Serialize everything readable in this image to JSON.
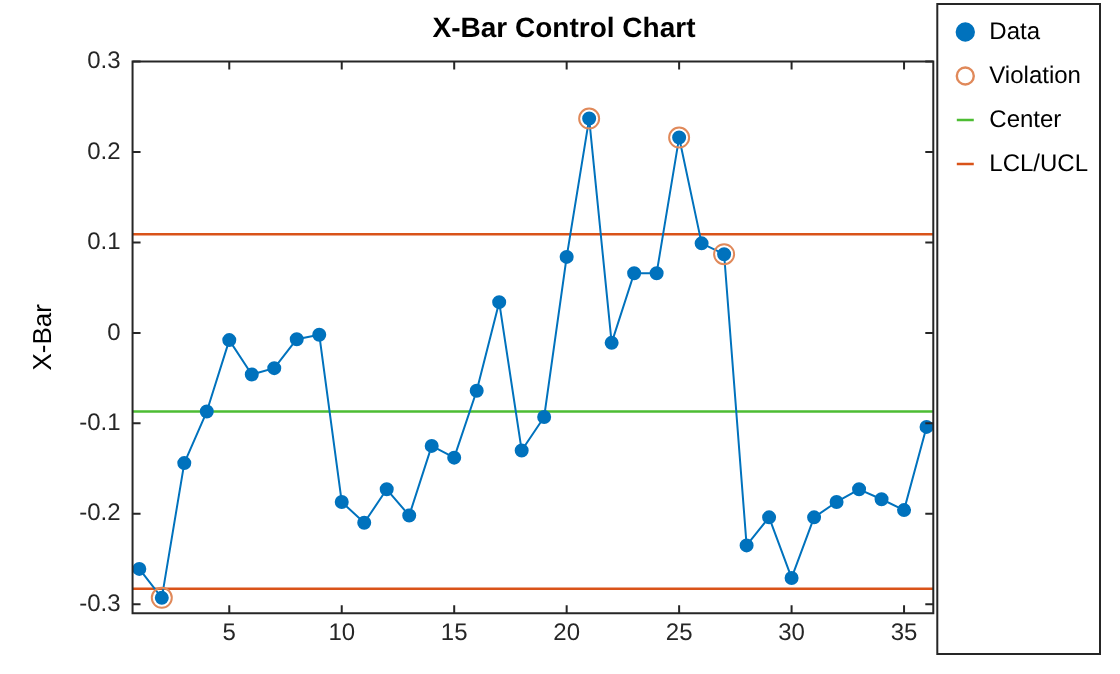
{
  "chart_data": {
    "type": "line",
    "title": "X-Bar Control Chart",
    "ylabel": "X-Bar",
    "x": [
      1,
      2,
      3,
      4,
      5,
      6,
      7,
      8,
      9,
      10,
      11,
      12,
      13,
      14,
      15,
      16,
      17,
      18,
      19,
      20,
      21,
      22,
      23,
      24,
      25,
      26,
      27,
      28,
      29,
      30,
      31,
      32,
      33,
      34,
      35,
      36
    ],
    "series": [
      {
        "name": "Data",
        "color": "#0072bd",
        "marker": "circle",
        "values": [
          -0.261,
          -0.293,
          -0.144,
          -0.087,
          -0.008,
          -0.046,
          -0.039,
          -0.007,
          -0.002,
          -0.187,
          -0.21,
          -0.173,
          -0.202,
          -0.125,
          -0.138,
          -0.064,
          0.034,
          -0.13,
          -0.093,
          0.084,
          0.237,
          -0.011,
          0.066,
          0.066,
          0.216,
          0.099,
          0.087,
          -0.235,
          -0.204,
          -0.271,
          -0.204,
          -0.187,
          -0.173,
          -0.184,
          -0.196,
          -0.104
        ]
      },
      {
        "name": "Violation",
        "type": "scatter",
        "color": "#e0895a",
        "marker": "circle",
        "x": [
          2,
          21,
          25,
          27
        ],
        "values": [
          -0.293,
          0.237,
          0.216,
          0.087
        ]
      }
    ],
    "ref_lines": [
      {
        "axis": "y",
        "value": -0.087,
        "label": "Center",
        "color": "#4dbd33"
      },
      {
        "axis": "y",
        "value": 0.109,
        "label": "LCL/UCL",
        "color": "#d95319"
      },
      {
        "axis": "y",
        "value": -0.283,
        "color": "#d95319"
      }
    ],
    "xlim": [
      0.7,
      36.3
    ],
    "xticks": [
      5,
      10,
      15,
      20,
      25,
      30,
      35
    ],
    "ylim": [
      -0.31,
      0.3
    ],
    "yticks": [
      -0.3,
      -0.2,
      -0.1,
      0,
      0.1,
      0.2,
      0.3
    ],
    "grid": false,
    "legend": "top right"
  }
}
